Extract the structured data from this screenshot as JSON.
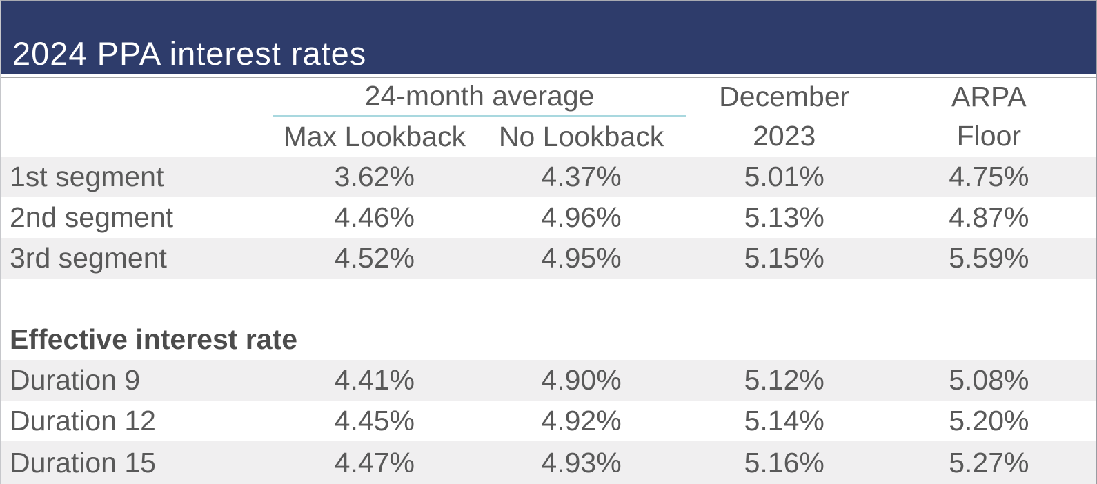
{
  "title": "2024 PPA interest rates",
  "colors": {
    "banner_navy": "#2e3c6b",
    "group_underline_teal": "#a9d8df",
    "row_shade_gray": "#f0eff0",
    "body_text_gray": "#595959"
  },
  "header": {
    "group_label": "24-month average",
    "sub_columns": [
      "Max Lookback",
      "No Lookback"
    ],
    "december": [
      "December",
      "2023"
    ],
    "arpa": [
      "ARPA",
      "Floor"
    ]
  },
  "section_heading": "Effective interest rate",
  "rows": [
    {
      "label": "1st segment",
      "values": [
        "3.62%",
        "4.37%",
        "5.01%",
        "4.75%"
      ]
    },
    {
      "label": "2nd segment",
      "values": [
        "4.46%",
        "4.96%",
        "5.13%",
        "4.87%"
      ]
    },
    {
      "label": "3rd segment",
      "values": [
        "4.52%",
        "4.95%",
        "5.15%",
        "5.59%"
      ]
    },
    {
      "label": "Duration 9",
      "values": [
        "4.41%",
        "4.90%",
        "5.12%",
        "5.08%"
      ]
    },
    {
      "label": "Duration 12",
      "values": [
        "4.45%",
        "4.92%",
        "5.14%",
        "5.20%"
      ]
    },
    {
      "label": "Duration 15",
      "values": [
        "4.47%",
        "4.93%",
        "5.16%",
        "5.27%"
      ]
    }
  ]
}
